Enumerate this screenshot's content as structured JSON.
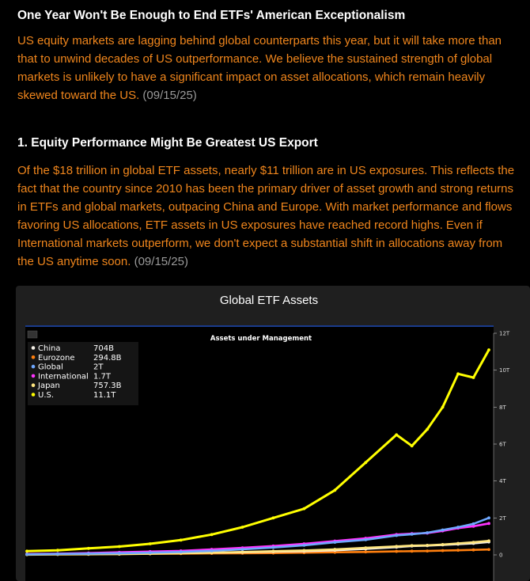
{
  "article": {
    "headline": "One Year Won't Be Enough to End ETFs' American Exceptionalism",
    "intro": "US equity markets are lagging behind global counterparts this year, but it will take more than that to unwind decades of US outperformance. We believe the sustained strength of global markets is unlikely to have a significant impact on asset allocations, which remain heavily skewed toward the US.",
    "intro_date": "(09/15/25)",
    "section_title": "1. Equity Performance Might Be Greatest US Export",
    "section_body": "Of the $18 trillion in global ETF assets, nearly $11 trillion are in US exposures. This reflects the fact that the country since 2010 has been the primary driver of asset growth and strong returns in ETFs and global markets, outpacing China and Europe. With market performance and flows favoring US allocations, ETF assets in US exposures have reached record highs. Even if International markets outperform, we don't expect a substantial shift in allocations away from the US anytime soon.",
    "section_date": "(09/15/25)"
  },
  "chart_data": {
    "type": "line",
    "title": "Global ETF Assets",
    "subtitle": "Assets under Management",
    "ylim": [
      0,
      12
    ],
    "y_ticks": [
      "0",
      "2T",
      "4T",
      "6T",
      "8T",
      "10T",
      "12T"
    ],
    "y_tick_values": [
      0,
      2,
      4,
      6,
      8,
      10,
      12
    ],
    "legend_position": "top-left",
    "grid": false,
    "x": [
      0,
      2,
      4,
      6,
      8,
      10,
      12,
      14,
      16,
      18,
      20,
      22,
      24,
      25,
      26,
      27,
      28,
      29,
      30
    ],
    "series": [
      {
        "name": "China",
        "last_value": "704B",
        "color": "#f5f0e8",
        "values": [
          0.03,
          0.04,
          0.05,
          0.06,
          0.08,
          0.1,
          0.12,
          0.14,
          0.17,
          0.2,
          0.25,
          0.32,
          0.42,
          0.48,
          0.5,
          0.54,
          0.58,
          0.62,
          0.7
        ]
      },
      {
        "name": "Eurozone",
        "last_value": "294.8B",
        "color": "#ff7f0e",
        "values": [
          0.02,
          0.03,
          0.04,
          0.05,
          0.06,
          0.07,
          0.08,
          0.09,
          0.1,
          0.12,
          0.14,
          0.16,
          0.19,
          0.2,
          0.21,
          0.23,
          0.25,
          0.27,
          0.29
        ]
      },
      {
        "name": "Global",
        "last_value": "2T",
        "color": "#6fa8ff",
        "values": [
          0.03,
          0.05,
          0.07,
          0.09,
          0.12,
          0.16,
          0.22,
          0.3,
          0.4,
          0.52,
          0.68,
          0.82,
          1.05,
          1.12,
          1.2,
          1.35,
          1.5,
          1.68,
          2.0
        ]
      },
      {
        "name": "International",
        "last_value": "1.7T",
        "color": "#ff33ff",
        "values": [
          0.05,
          0.07,
          0.1,
          0.14,
          0.18,
          0.22,
          0.3,
          0.38,
          0.48,
          0.6,
          0.75,
          0.9,
          1.1,
          1.15,
          1.18,
          1.3,
          1.45,
          1.55,
          1.7
        ]
      },
      {
        "name": "Japan",
        "last_value": "757.3B",
        "color": "#ffe680",
        "values": [
          0.01,
          0.02,
          0.03,
          0.04,
          0.06,
          0.09,
          0.12,
          0.16,
          0.2,
          0.24,
          0.3,
          0.38,
          0.46,
          0.5,
          0.52,
          0.56,
          0.62,
          0.68,
          0.76
        ]
      },
      {
        "name": "U.S.",
        "last_value": "11.1T",
        "color": "#ffff00",
        "values": [
          0.2,
          0.25,
          0.35,
          0.45,
          0.6,
          0.8,
          1.1,
          1.5,
          2.0,
          2.5,
          3.5,
          5.0,
          6.5,
          5.9,
          6.8,
          8.0,
          9.8,
          9.6,
          11.1
        ]
      }
    ]
  }
}
